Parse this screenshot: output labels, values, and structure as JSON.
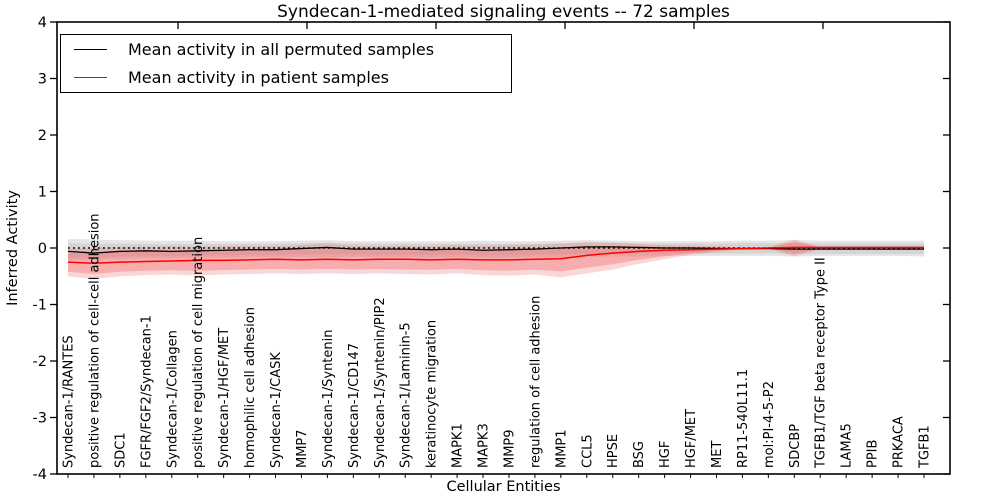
{
  "figure": {
    "background": "#ffffff"
  },
  "chart_data": {
    "type": "line",
    "title": "Syndecan-1-mediated signaling events -- 72 samples",
    "xlabel": "Cellular Entities",
    "ylabel": "Inferred Activity",
    "ylim": [
      -4,
      4
    ],
    "yticks": [
      -4,
      -3,
      -2,
      -1,
      0,
      1,
      2,
      3,
      4
    ],
    "grid": false,
    "legend": {
      "position": "upper left",
      "entries": [
        {
          "label": "Mean activity in all permuted samples",
          "color": "#000000"
        },
        {
          "label": "Mean activity in patient samples",
          "color": "#ff0000"
        }
      ]
    },
    "zero_line": {
      "y": 0,
      "style": "dotted",
      "color": "#000000"
    },
    "categories": [
      "Syndecan-1/RANTES",
      "positive regulation of cell-cell adhesion",
      "SDC1",
      "FGFR/FGF2/Syndecan-1",
      "Syndecan-1/Collagen",
      "positive regulation of cell migration",
      "Syndecan-1/HGF/MET",
      "homophilic cell adhesion",
      "Syndecan-1/CASK",
      "MMP7",
      "Syndecan-1/Syntenin",
      "Syndecan-1/CD147",
      "Syndecan-1/Syntenin/PIP2",
      "Syndecan-1/Laminin-5",
      "keratinocyte migration",
      "MAPK1",
      "MAPK3",
      "MMP9",
      "regulation of cell adhesion",
      "MMP1",
      "CCL5",
      "HPSE",
      "BSG",
      "HGF",
      "HGF/MET",
      "MET",
      "RP11-540L11.1",
      "mol:PI-4-5-P2",
      "SDCBP",
      "TGFB1/TGF beta receptor Type II",
      "LAMA5",
      "PPIB",
      "PRKACA",
      "TGFB1"
    ],
    "series": [
      {
        "name": "Mean activity in all permuted samples",
        "color": "#000000",
        "values": [
          -0.06,
          -0.09,
          -0.06,
          -0.05,
          -0.06,
          -0.05,
          -0.04,
          -0.03,
          -0.03,
          -0.01,
          0.01,
          -0.02,
          -0.02,
          -0.02,
          -0.03,
          -0.02,
          -0.04,
          -0.03,
          -0.02,
          0.0,
          0.02,
          0.02,
          0.01,
          0.0,
          0.0,
          -0.01,
          -0.01,
          -0.01,
          -0.02,
          -0.02,
          -0.02,
          -0.02,
          -0.02,
          -0.02
        ]
      },
      {
        "name": "Mean activity in patient samples",
        "color": "#ff0000",
        "values": [
          -0.25,
          -0.27,
          -0.25,
          -0.24,
          -0.23,
          -0.22,
          -0.22,
          -0.21,
          -0.2,
          -0.21,
          -0.2,
          -0.21,
          -0.2,
          -0.2,
          -0.21,
          -0.2,
          -0.21,
          -0.21,
          -0.2,
          -0.19,
          -0.13,
          -0.09,
          -0.06,
          -0.04,
          -0.03,
          -0.02,
          -0.01,
          0.0,
          0.01,
          0.01,
          0.01,
          0.01,
          0.01,
          0.01
        ]
      }
    ],
    "bands": [
      {
        "name": "permuted samples range",
        "color": "#999999",
        "mean_series": 0,
        "upper": [
          0.16,
          0.15,
          0.14,
          0.13,
          0.13,
          0.13,
          0.12,
          0.12,
          0.12,
          0.13,
          0.14,
          0.12,
          0.12,
          0.12,
          0.12,
          0.12,
          0.13,
          0.12,
          0.12,
          0.13,
          0.14,
          0.13,
          0.12,
          0.12,
          0.12,
          0.12,
          0.13,
          0.13,
          0.14,
          0.13,
          0.13,
          0.13,
          0.13,
          0.13
        ],
        "lower": [
          -0.22,
          -0.21,
          -0.19,
          -0.18,
          -0.18,
          -0.17,
          -0.17,
          -0.16,
          -0.16,
          -0.16,
          -0.16,
          -0.16,
          -0.16,
          -0.16,
          -0.17,
          -0.16,
          -0.17,
          -0.17,
          -0.16,
          -0.17,
          -0.16,
          -0.15,
          -0.15,
          -0.14,
          -0.14,
          -0.14,
          -0.14,
          -0.14,
          -0.15,
          -0.14,
          -0.14,
          -0.14,
          -0.14,
          -0.15
        ]
      },
      {
        "name": "patient samples range",
        "color": "#f26c6c",
        "mean_series": 1,
        "upper": [
          -0.02,
          0.0,
          0.02,
          0.02,
          0.03,
          0.02,
          0.03,
          0.04,
          0.03,
          0.05,
          0.08,
          0.04,
          0.03,
          0.04,
          0.03,
          0.05,
          0.04,
          0.05,
          0.06,
          0.07,
          0.1,
          0.09,
          0.07,
          0.05,
          0.04,
          0.03,
          0.01,
          0.01,
          0.15,
          0.02,
          0.02,
          0.02,
          0.02,
          0.02
        ],
        "lower": [
          -0.5,
          -0.55,
          -0.5,
          -0.48,
          -0.47,
          -0.49,
          -0.47,
          -0.46,
          -0.45,
          -0.46,
          -0.45,
          -0.46,
          -0.45,
          -0.46,
          -0.47,
          -0.45,
          -0.48,
          -0.49,
          -0.47,
          -0.52,
          -0.45,
          -0.38,
          -0.28,
          -0.2,
          -0.12,
          -0.07,
          -0.02,
          -0.01,
          -0.15,
          -0.02,
          -0.02,
          -0.03,
          -0.03,
          -0.03
        ]
      }
    ]
  }
}
